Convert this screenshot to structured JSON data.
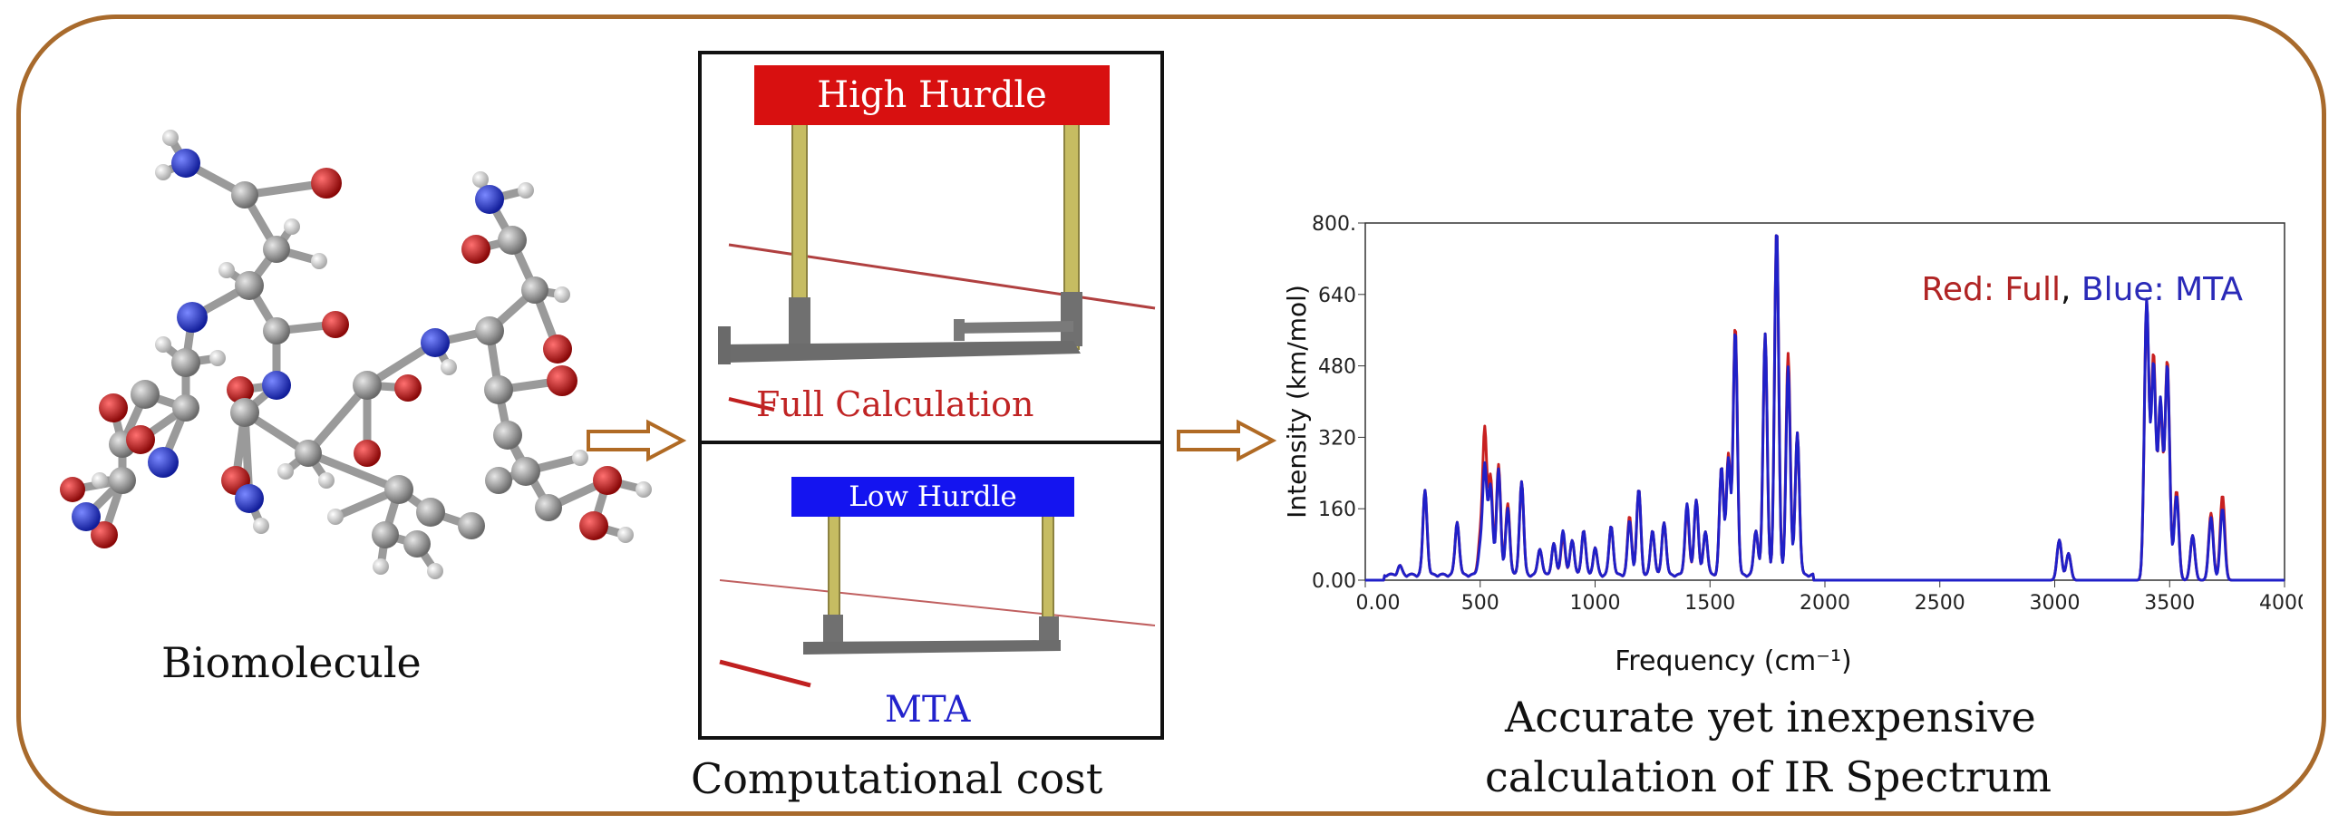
{
  "colors": {
    "frame": "#a86a2c",
    "high_hurdle": "#d81010",
    "low_hurdle": "#1414f0",
    "full_series": "#c82020",
    "mta_series": "#2020c8",
    "carbon": "#8c8c8c",
    "nitrogen": "#2030c8",
    "oxygen": "#c81818",
    "hydrogen": "#e8e8e8"
  },
  "molecule": {
    "label": "Biomolecule"
  },
  "cost": {
    "high": {
      "bar_label": "High Hurdle",
      "caption": "Full Calculation"
    },
    "low": {
      "bar_label": "Low Hurdle",
      "caption": "MTA"
    },
    "caption": "Computational cost"
  },
  "result": {
    "caption_line1": "Accurate yet inexpensive",
    "caption_line2": "calculation of IR Spectrum"
  },
  "chart_data": {
    "type": "line",
    "xlabel": "Frequency  (cm⁻¹)",
    "ylabel": "Intensity  (km/mol)",
    "xlim": [
      0,
      4000
    ],
    "ylim": [
      0,
      800
    ],
    "x_ticks": [
      "0.00",
      "500",
      "1000",
      "1500",
      "2000",
      "2500",
      "3000",
      "3500",
      "4000"
    ],
    "y_ticks": [
      "0.00",
      "160",
      "320",
      "480",
      "640",
      "800."
    ],
    "legend": {
      "part1": "Red: Full",
      "sep": ", ",
      "part2": "Blue: MTA",
      "placement": "top-right"
    },
    "grid": false,
    "series": [
      {
        "name": "Full",
        "color": "#c82020",
        "peaks": [
          [
            150,
            20
          ],
          [
            260,
            190
          ],
          [
            400,
            120
          ],
          [
            500,
            80
          ],
          [
            520,
            320
          ],
          [
            545,
            220
          ],
          [
            580,
            250
          ],
          [
            620,
            160
          ],
          [
            680,
            210
          ],
          [
            760,
            60
          ],
          [
            820,
            70
          ],
          [
            860,
            90
          ],
          [
            900,
            80
          ],
          [
            950,
            100
          ],
          [
            1000,
            60
          ],
          [
            1070,
            110
          ],
          [
            1150,
            130
          ],
          [
            1190,
            190
          ],
          [
            1250,
            100
          ],
          [
            1300,
            120
          ],
          [
            1400,
            150
          ],
          [
            1440,
            170
          ],
          [
            1480,
            100
          ],
          [
            1550,
            240
          ],
          [
            1580,
            270
          ],
          [
            1610,
            560
          ],
          [
            1700,
            100
          ],
          [
            1740,
            540
          ],
          [
            1790,
            780
          ],
          [
            1840,
            500
          ],
          [
            1880,
            320
          ],
          [
            3020,
            90
          ],
          [
            3060,
            60
          ],
          [
            3400,
            620
          ],
          [
            3430,
            500
          ],
          [
            3460,
            390
          ],
          [
            3490,
            490
          ],
          [
            3530,
            200
          ],
          [
            3600,
            100
          ],
          [
            3680,
            150
          ],
          [
            3730,
            190
          ]
        ]
      },
      {
        "name": "MTA",
        "color": "#2020c8",
        "peaks": [
          [
            150,
            20
          ],
          [
            260,
            190
          ],
          [
            400,
            120
          ],
          [
            500,
            60
          ],
          [
            520,
            240
          ],
          [
            545,
            200
          ],
          [
            580,
            240
          ],
          [
            620,
            150
          ],
          [
            680,
            210
          ],
          [
            760,
            60
          ],
          [
            820,
            70
          ],
          [
            860,
            100
          ],
          [
            900,
            80
          ],
          [
            950,
            100
          ],
          [
            1000,
            60
          ],
          [
            1070,
            110
          ],
          [
            1150,
            120
          ],
          [
            1190,
            190
          ],
          [
            1250,
            100
          ],
          [
            1300,
            120
          ],
          [
            1400,
            160
          ],
          [
            1440,
            170
          ],
          [
            1480,
            100
          ],
          [
            1550,
            240
          ],
          [
            1580,
            260
          ],
          [
            1610,
            550
          ],
          [
            1700,
            100
          ],
          [
            1740,
            540
          ],
          [
            1790,
            780
          ],
          [
            1840,
            470
          ],
          [
            1880,
            320
          ],
          [
            3020,
            90
          ],
          [
            3060,
            60
          ],
          [
            3400,
            625
          ],
          [
            3430,
            480
          ],
          [
            3460,
            400
          ],
          [
            3490,
            480
          ],
          [
            3530,
            190
          ],
          [
            3600,
            100
          ],
          [
            3680,
            140
          ],
          [
            3730,
            160
          ]
        ]
      }
    ]
  }
}
